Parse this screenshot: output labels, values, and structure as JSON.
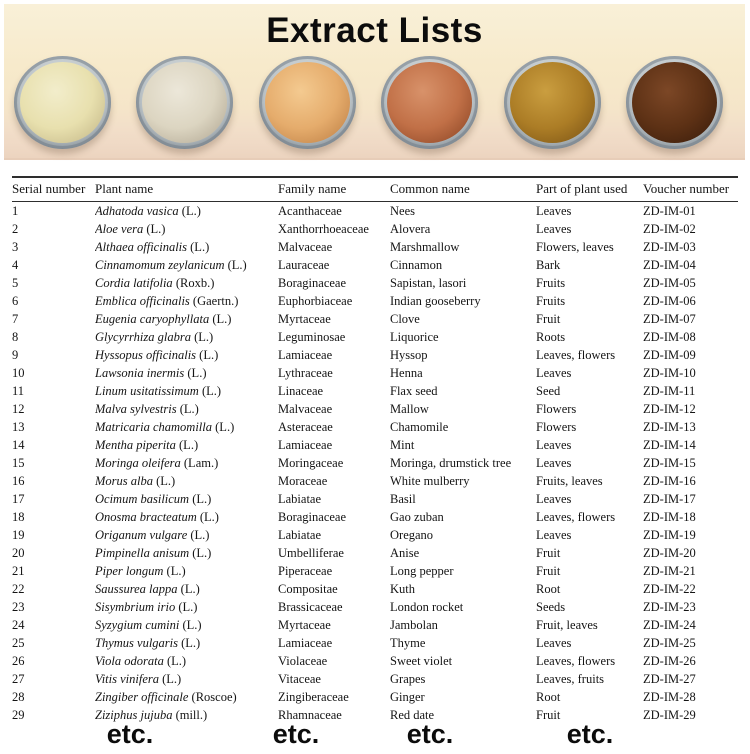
{
  "title": "Extract Lists",
  "banner": {
    "background_top": "#f7eacb",
    "background_bottom": "#ecd4bf"
  },
  "dishes": [
    {
      "name": "pale-cream-extract-powder",
      "highlight": "#f2edcb",
      "base": "#e8e0ae",
      "shadow": "#c2b586"
    },
    {
      "name": "off-white-extract-powder",
      "highlight": "#ece7d9",
      "base": "#dcd5c1",
      "shadow": "#b0a692"
    },
    {
      "name": "light-tan-extract-powder",
      "highlight": "#f4ca90",
      "base": "#e5ac6c",
      "shadow": "#bd7e44"
    },
    {
      "name": "terracotta-extract-powder",
      "highlight": "#d8926a",
      "base": "#c17047",
      "shadow": "#8a4424"
    },
    {
      "name": "golden-brown-extract-powder",
      "highlight": "#ca9e40",
      "base": "#ac7d26",
      "shadow": "#7a5315"
    },
    {
      "name": "dark-brown-extract-powder",
      "highlight": "#7c4726",
      "base": "#5d3115",
      "shadow": "#391c0b"
    }
  ],
  "table": {
    "columns": [
      "Serial number",
      "Plant name",
      "Family name",
      "Common name",
      "Part of plant used",
      "Voucher number"
    ],
    "rows": [
      {
        "serial": "1",
        "plant_sci": "Adhatoda vasica",
        "plant_auth": "(L.)",
        "family": "Acanthaceae",
        "common": "Nees",
        "part": "Leaves",
        "voucher": "ZD-IM-01"
      },
      {
        "serial": "2",
        "plant_sci": "Aloe vera",
        "plant_auth": "(L.)",
        "family": "Xanthorrhoeaceae",
        "common": "Alovera",
        "part": "Leaves",
        "voucher": "ZD-IM-02"
      },
      {
        "serial": "3",
        "plant_sci": "Althaea officinalis",
        "plant_auth": "(L.)",
        "family": "Malvaceae",
        "common": "Marshmallow",
        "part": "Flowers, leaves",
        "voucher": "ZD-IM-03"
      },
      {
        "serial": "4",
        "plant_sci": "Cinnamomum zeylanicum",
        "plant_auth": "(L.)",
        "family": "Lauraceae",
        "common": "Cinnamon",
        "part": "Bark",
        "voucher": "ZD-IM-04"
      },
      {
        "serial": "5",
        "plant_sci": "Cordia latifolia",
        "plant_auth": "(Roxb.)",
        "family": "Boraginaceae",
        "common": "Sapistan, lasori",
        "part": "Fruits",
        "voucher": "ZD-IM-05"
      },
      {
        "serial": "6",
        "plant_sci": "Emblica officinalis",
        "plant_auth": "(Gaertn.)",
        "family": "Euphorbiaceae",
        "common": "Indian gooseberry",
        "part": "Fruits",
        "voucher": "ZD-IM-06"
      },
      {
        "serial": "7",
        "plant_sci": "Eugenia caryophyllata",
        "plant_auth": "(L.)",
        "family": "Myrtaceae",
        "common": "Clove",
        "part": "Fruit",
        "voucher": "ZD-IM-07"
      },
      {
        "serial": "8",
        "plant_sci": "Glycyrrhiza glabra",
        "plant_auth": "(L.)",
        "family": "Leguminosae",
        "common": "Liquorice",
        "part": "Roots",
        "voucher": "ZD-IM-08"
      },
      {
        "serial": "9",
        "plant_sci": "Hyssopus officinalis",
        "plant_auth": "(L.)",
        "family": "Lamiaceae",
        "common": "Hyssop",
        "part": "Leaves, flowers",
        "voucher": "ZD-IM-09"
      },
      {
        "serial": "10",
        "plant_sci": "Lawsonia inermis",
        "plant_auth": "(L.)",
        "family": "Lythraceae",
        "common": "Henna",
        "part": "Leaves",
        "voucher": "ZD-IM-10"
      },
      {
        "serial": "11",
        "plant_sci": "Linum usitatissimum",
        "plant_auth": "(L.)",
        "family": "Linaceae",
        "common": "Flax seed",
        "part": "Seed",
        "voucher": "ZD-IM-11"
      },
      {
        "serial": "12",
        "plant_sci": "Malva sylvestris",
        "plant_auth": "(L.)",
        "family": "Malvaceae",
        "common": "Mallow",
        "part": "Flowers",
        "voucher": "ZD-IM-12"
      },
      {
        "serial": "13",
        "plant_sci": "Matricaria chamomilla",
        "plant_auth": "(L.)",
        "family": "Asteraceae",
        "common": "Chamomile",
        "part": "Flowers",
        "voucher": "ZD-IM-13"
      },
      {
        "serial": "14",
        "plant_sci": "Mentha piperita",
        "plant_auth": "(L.)",
        "family": "Lamiaceae",
        "common": "Mint",
        "part": "Leaves",
        "voucher": "ZD-IM-14"
      },
      {
        "serial": "15",
        "plant_sci": "Moringa oleifera",
        "plant_auth": "(Lam.)",
        "family": "Moringaceae",
        "common": "Moringa, drumstick tree",
        "part": "Leaves",
        "voucher": "ZD-IM-15"
      },
      {
        "serial": "16",
        "plant_sci": "Morus alba",
        "plant_auth": "(L.)",
        "family": "Moraceae",
        "common": "White mulberry",
        "part": "Fruits, leaves",
        "voucher": "ZD-IM-16"
      },
      {
        "serial": "17",
        "plant_sci": "Ocimum basilicum",
        "plant_auth": "(L.)",
        "family": "Labiatae",
        "common": "Basil",
        "part": "Leaves",
        "voucher": "ZD-IM-17"
      },
      {
        "serial": "18",
        "plant_sci": "Onosma bracteatum",
        "plant_auth": "(L.)",
        "family": "Boraginaceae",
        "common": "Gao zuban",
        "part": "Leaves, flowers",
        "voucher": "ZD-IM-18"
      },
      {
        "serial": "19",
        "plant_sci": "Origanum vulgare",
        "plant_auth": "(L.)",
        "family": "Labiatae",
        "common": "Oregano",
        "part": "Leaves",
        "voucher": "ZD-IM-19"
      },
      {
        "serial": "20",
        "plant_sci": "Pimpinella anisum",
        "plant_auth": "(L.)",
        "family": "Umbelliferae",
        "common": "Anise",
        "part": "Fruit",
        "voucher": "ZD-IM-20"
      },
      {
        "serial": "21",
        "plant_sci": "Piper longum",
        "plant_auth": "(L.)",
        "family": "Piperaceae",
        "common": "Long pepper",
        "part": "Fruit",
        "voucher": "ZD-IM-21"
      },
      {
        "serial": "22",
        "plant_sci": "Saussurea lappa",
        "plant_auth": "(L.)",
        "family": "Compositae",
        "common": "Kuth",
        "part": "Root",
        "voucher": "ZD-IM-22"
      },
      {
        "serial": "23",
        "plant_sci": "Sisymbrium irio",
        "plant_auth": "(L.)",
        "family": "Brassicaceae",
        "common": "London rocket",
        "part": "Seeds",
        "voucher": "ZD-IM-23"
      },
      {
        "serial": "24",
        "plant_sci": "Syzygium cumini",
        "plant_auth": "(L.)",
        "family": "Myrtaceae",
        "common": "Jambolan",
        "part": "Fruit, leaves",
        "voucher": "ZD-IM-24"
      },
      {
        "serial": "25",
        "plant_sci": "Thymus vulgaris",
        "plant_auth": "(L.)",
        "family": "Lamiaceae",
        "common": "Thyme",
        "part": "Leaves",
        "voucher": "ZD-IM-25"
      },
      {
        "serial": "26",
        "plant_sci": "Viola odorata",
        "plant_auth": "(L.)",
        "family": "Violaceae",
        "common": "Sweet violet",
        "part": "Leaves, flowers",
        "voucher": "ZD-IM-26"
      },
      {
        "serial": "27",
        "plant_sci": "Vitis vinifera",
        "plant_auth": "(L.)",
        "family": "Vitaceae",
        "common": "Grapes",
        "part": "Leaves, fruits",
        "voucher": "ZD-IM-27"
      },
      {
        "serial": "28",
        "plant_sci": "Zingiber officinale",
        "plant_auth": "(Roscoe)",
        "family": "Zingiberaceae",
        "common": "Ginger",
        "part": "Root",
        "voucher": "ZD-IM-28"
      },
      {
        "serial": "29",
        "plant_sci": "Ziziphus jujuba",
        "plant_auth": "(mill.)",
        "family": "Rhamnaceae",
        "common": "Red date",
        "part": "Fruit",
        "voucher": "ZD-IM-29"
      }
    ]
  },
  "etc_labels": [
    "etc.",
    "etc.",
    "etc.",
    "etc."
  ]
}
